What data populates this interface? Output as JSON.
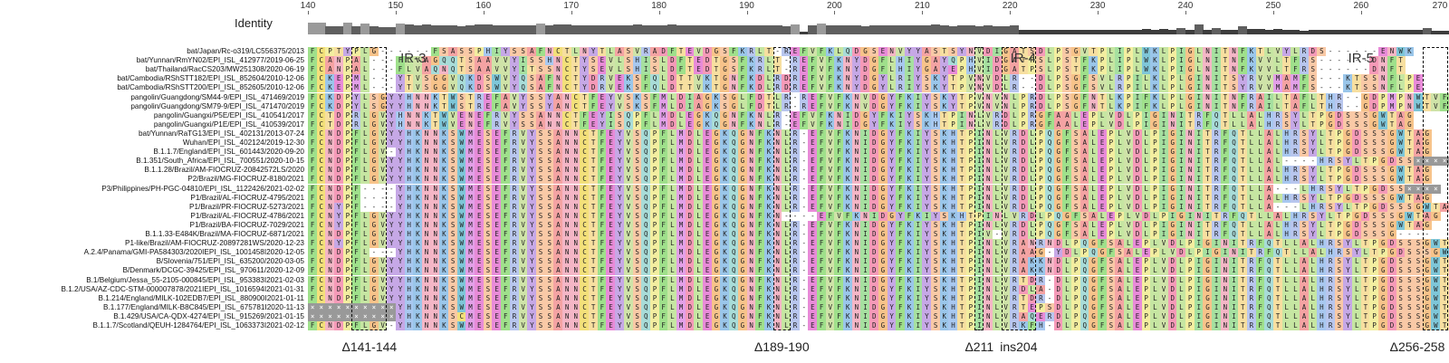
{
  "identity_label": "Identity",
  "ruler_ticks": [
    "140",
    "150",
    "160",
    "170",
    "180",
    "190",
    "200",
    "210",
    "220",
    "230",
    "240",
    "250",
    "260",
    "270"
  ],
  "regions": [
    {
      "label": "IR-3",
      "start": 147,
      "end": 157
    },
    {
      "label": "IR-4",
      "start": 219,
      "end": 224
    },
    {
      "label": "IR-5",
      "start": 256,
      "end": 264
    }
  ],
  "deletions": [
    {
      "label": "Δ141-144",
      "start": 145,
      "end": 149
    },
    {
      "label": "Δ189-190",
      "start": 193,
      "end": 195
    },
    {
      "label": "Δ211",
      "start": 216,
      "end": 217
    },
    {
      "label": "ins204",
      "start": 219,
      "end": 223
    },
    {
      "label": "Δ256-258",
      "start": 267,
      "end": 270
    }
  ],
  "colors": {
    "A": "#f4a3a3",
    "C": "#f3e07a",
    "D": "#f59ab8",
    "E": "#e88bd8",
    "F": "#9fe08b",
    "G": "#f7c38a",
    "H": "#a8c8f0",
    "I": "#a6e0a0",
    "K": "#9ac6ea",
    "L": "#c6e6a2",
    "M": "#e3a0e8",
    "N": "#f4b6c6",
    "P": "#f3eea0",
    "Q": "#a8dcd8",
    "R": "#b8c6ee",
    "S": "#f9c9a6",
    "T": "#f7dfa0",
    "V": "#cfe3a8",
    "W": "#7ec6d8",
    "Y": "#c6a8e6",
    "X": "#999999",
    "-": "#ffffff"
  },
  "sequences": [
    {
      "name": "bat/Japan/Rc-o319/LC556375/2013",
      "seq": "FCPTYPLG------FSASSPHIYSSAFNCTLNYTLASVRADFTEVDGSFKRLT-REFVFKLQDGSENVYYASTSYNVDIGATSDLPSGVTPLIPLWKLPIGLNITNFKTLVYLRDS------ENWK"
    },
    {
      "name": "bat/Yunnan/RmYN02/EPI_ISL_412977/2019-06-25",
      "seq": "FCANPAL---FLVAGQQTSAAVVYISSHNCTYSEVLSHISLDFTEDTGSFKRLT-REFVFKNYDGFLHIYGAYQPHVIDGATPSLPSTFKPLIPLWKLPIGLNITNFKVVLTFRS------DNFT"
    },
    {
      "name": "bat/Thailand/RacCS203/MW251308/2020-06-19",
      "seq": "FCANPAL---FLVAQNQTSAAVVYITSSNCTYSEVLSHISLDFTEDTGSFKRLT-REFVFKNYDGFLHIYGAYEPHVIDGATPSLPSTFKPLIPLWKLPIGLNITNFKVVLTFRS------DNFT"
    },
    {
      "name": "bat/Cambodia/RShSTT182/EPI_ISL_852604/2010-12-06",
      "seq": "FCKEPML---YTVSGGVQKDSWVYQSAFNCTYDRVEKSFQLDTTVKTGNFKDLRDREFVFKNYDGYLRIYSKYTPVNVDLR--DLPSGFSVLRPILKLPLGINITSYRVVMAMFS---KTSSNFLPE"
    },
    {
      "name": "bat/Cambodia/RShSTT200/EPI_ISL_852605/2010-12-06",
      "seq": "FCKEPML---YTVSGGVQKDSWVYQSAFNCTYDRVEKSFQLDTTVKTGNFKDLRDREFVFKNYDGYLRIYSKYTPVNVDLR--DLPSGFSVLRPILKLPLGINITSYRVVMAMFS---KTSSNFLPE"
    },
    {
      "name": "pangolin/Guangdong/SM44-9/EPI_ISL_471469/2019",
      "seq": "FCKDPYLSGYYHNNKTWSTREFAVYSSYANCTFEYVSKSFMLDIAGKSGLFDTLR-REFVFKNVDGYFKIYSKYTPVNVNLPRDLPSGFNTLKPIFKLPLGINITNFRAILTAFLTHR--GDPMPNWTVF"
    },
    {
      "name": "pangolin/Guangdong/SM79-9/EPI_ISL_471470/2019",
      "seq": "FCKDPYLSGYYHNNKTWSTREFAVYSSYANCTFEYVSKSFMLDIAGKSGLFDTLR-REFVFKNVDGYFKIYSKYTPVNVNLPRDLPSGFNTLKPIFKLPLGINITNFRAILTAFLTHR--GDPMPNWTVF"
    },
    {
      "name": "pangolin/Guangxi/P5E/EPI_ISL_410541/2017",
      "seq": "FCTDPRLGVYHNNKTWVENEFRVYSSANNCTFEYISQPFLMDLEGKQGNFKNLR-EFVFKNIDGYFKIYSKHTPINLVRDLPRGFAALEPLVDLPIGINITRFQTLLALHRSYLTPGDSSSGWTAG"
    },
    {
      "name": "pangolin/Guangxi/P1E/EPI_ISL_410539/2017",
      "seq": "FCTDPRLGVYHNNKTWVENEFRVYSSANNCTFEYISQPFLMDLEGKQGNFKNLR-EFVFKNIDGYFKIYSKHTPINLVRDLPRGFAALEPLVDLPIGINITRFQTLLALHRSYLTPGDSSSGWTAG"
    },
    {
      "name": "bat/Yunnan/RaTG13/EPI_ISL_402131/2013-07-24",
      "seq": "FCNDPFLGVYYHKNNKSWMESEFRVYSSANNCTFEYVSQPFLMDLEGKQGNFKNLR-EFVFKNIDGYFKIYSKHTPINLVRDLPQGFSALEPLVDLPIGINITRFQTLLALHRSYLTPGDSSSGWTAG"
    },
    {
      "name": "Wuhan/EPI_ISL_402124/2019-12-30",
      "seq": "FCNDPFLGVYYHKNNKSWMESEFRVYSSANNCTFEYVSQPFLMDLEGKQGNFKNLR-EFVFKNIDGYFKIYSKHTPINLVRDLPQGFSALEPLVDLPIGINITRFQTLLALHRSYLTPGDSSSGWTAG"
    },
    {
      "name": "B.1.1.7/England/EPI_ISL_601443/2020-09-20",
      "seq": "FCNDPFLGV-YHKNNKSWMESEFRVYSSANNCTFEYVSQPFLMDLEGKQGNFKNLR-EFVFKNIDGYFKIYSKHTPINLVRDLPQGFSALEPLVDLPIGINITRFQTLLALHRSYLTPGDSSSGWTAG"
    },
    {
      "name": "B.1.351/South_Africa/EPI_ISL_700551/2020-10-15",
      "seq": "FCNDPFLGVYYHKNNKSWMESEFRVYSSANNCTFEYVSQPFLMDLEGKQGNFKNLR-EFVFKNIDGYFKIYSKHTPINLVRDLPQGFSALEPLVDLPIGINITRFQTLLAL----HRSYLTPGDSSXXXX"
    },
    {
      "name": "B.1.1.28/Brazil/AM-FIOCRUZ-20842572LS/2020",
      "seq": "FCNDPFLGVYYHKNNKSWMESEFRVYSSANNCTFEYVSQPFLMDLEGKQGNFKNLR-EFVFKNIDGYFKIYSKHTPINLVRDLPQGFSALEPLVDLPIGINITRFQTLLALHRSYLTPGDSSSGWTAG"
    },
    {
      "name": "P2/Brazil/MG-FIOCRUZ-8180/2021",
      "seq": "FCNDPFLGVYYHKNNKSWMESEFRVYSSANNCTFEYVSQPFLMDLEGKQGNFKNLR-EFVFKNIDGYFKIYSKHTPINLVRDLPQGFSALEPLVDLPIGINITRFQTLLALHRSYLTPGDSSSGWTAG"
    },
    {
      "name": "P3/Philippines/PH-PGC-04810/EPI_ISL_1122426/2021-02-02",
      "seq": "FCNDPF----YHKNNKSWMESEFRVYSSANNCTFEYVSQPFLMDLEGKQGNFKNLR-EFVFKNIDGYFKIYSKHTPINLVRDLPQGFSALEPLVDLPIGINITRFQTLLA---LHRSYLTPGDSSXXXX"
    },
    {
      "name": "P1/Brazil/AL-FIOCRUZ-4795/2021",
      "seq": "FCNDPF----YHKNNKSWMESEFRVYSSANNCTFEYVSQPFLMDLEGKQGNFKNLR-EFVFKNIDGYFKIYSKHTPINLVRDLPQGFSALEPLVDLPIGINITRFQTLLALHRSYLTPGDSSSGWTAG"
    },
    {
      "name": "P1/Brazil/PR-FIOCRUZ-5273/2021",
      "seq": "FCNYPF----YHKNNKSWMESEFRVYSSANNCTFEYVSQPFLMDLEGKQGNFKNLR-EFVFKNIDGYFKIYSKHTPINLVRDLPQGFSALEPLVDLPIGINITRFQTLLA---LHRSYLTPGDSSSGWTAG"
    },
    {
      "name": "P1/Brazil/AL-FIOCRUZ-4786/2021",
      "seq": "FCNYPFLGVYYHKNNKSWMESEFRVYSSANNCTFEYVSQPFLMDLEGKQGNFKN----EFVFKNIDGYFKIYSKHTPINLVRDLPQGFSALEPLVDLPIGINITRFQTLLALHRSYLTPGDSSSGWTAG"
    },
    {
      "name": "P1/Brazil/BA-FIOCRUZ-7029/2021",
      "seq": "FCNYPFLGVYYHKNNKSWMESEFRVYSSANNCTFEYVSQPFLMDLEGKQGNFKNLR-EFVFKNIDGYFKIYSKHTPINLVRDLPQGFSALEPLVDLPIGINITRFQTLLALHRSYLTPGDSSSGWTAG"
    },
    {
      "name": "B.1.1.33-E484K/Brazil/MA-FIOCRUZ-6871/2021",
      "seq": "FCNDPFLGVYYHKNNKSWMESEFRVYSSANNCTFEYVSQPFLMDLEGKQGNFKNLR-EFVFKNIDGYFKIYSKHTPIV-VRDLPQGFSALEPLVDLPIGINITRFQTLLALHRSYLTPGDSSSG----"
    },
    {
      "name": "P1-like/Brazil/AM-FIOCRUZ-20897281WS/2020-12-23",
      "seq": "FCNYPFLGVYYHKNNKSWMESEFRVYSSANNCTFEYVSQPFLMDLEGKQGNFKNLR-EFVFKNIDGYFKIYSKHTPINLVRANRNDLPQGFSALEPLVDLPIGINITRFQTLLALHRSYLTPGDSSSGWTAG"
    },
    {
      "name": "A.2.4/Panama/GMI-PA584303/2020IEPI_ISL_1001458I2020-12-05",
      "seq": "FCNDPFL---YHKNNKSWMESEFRVYSSANNCTFEYVSQPFLMDLEGKQGNFKNLR-EFVFKNIDGYFKIYSKHTPINLVRAAG-YDLPQGFSALEPLVDLPIGINITRFQTLLALHRSYLTPGDSSSGWTAG"
    },
    {
      "name": "B/Slovenia/751/EPI_ISL_635200/2020-03-05",
      "seq": "FCNDPFLGVYYHKNNKSWMESEFRVYSSANNCTFEYVSQPFLMDLEGKQGNFKNLR-EFVFKNIDGYFKIYSKHTPINLVRAKKNDLPQGFSALEPLVDLPIGINITRFQTLLALHRSYLTPGDSSSGWTAG"
    },
    {
      "name": "B/Denmark/DCGC-39425/EPI_ISL_970611/2020-12-09",
      "seq": "FCNDPFLGVYYHKNNKSWMESEFRVYSSANNCTFEYVSQPFLMDLEGKQGNFKNLR-EFVFKNIDGYFKIYSKHTPINLVRAKKNDLPQGFSALEPLVDLPIGINITRFQTLLALHRSYLTPGDSSSGWTAG"
    },
    {
      "name": "B.1/Belgium/Jessa_55-2105-000845/EPI_ISL_953383I2021-02-03",
      "seq": "FCNDPFLGVYYHKNNKSWMESEFRVYSSANNCTFEYVSQPFLMDLEGKQGNFKNLR-EFVFKNIDGYFKIYSKHTPINLVRTDR-DLPQGFSALEPLVDLPIGINITRFQTLLALHRSYLTPGDSSSGWTAG"
    },
    {
      "name": "B.1.2/USA/AZ-CDC-STM-000007878/2021IEPI_ISL_1016594I2021-01-31",
      "seq": "FCNDPFLGVYYHKNNKSWMESEFRVYSSANNCTFEYVSQPFLMDLEGKQGNFKNLR-EFVFKNIDGYFKIYSKHTPINLVRDLA-DLPQGFSALEPLVDLPIGINITRFQTLLALHRSYLTPGDSSSGWTAG"
    },
    {
      "name": "B.1.214/England/MILK-102EDB7/EPI_ISL_880900I2021-01-11",
      "seq": "FCNDPFLGVYYHKNNKSWMESEFRVYSSANNCTFEYVSQPFLMDLEGKQGNFKNLR-EFVFKNIDGYFKIYSKHTPINLVRTDR-DLPQGFSALEPLVDLPIGINITRFQTLLALHRSYLTPGDSSSGWTAG"
    },
    {
      "name": "B.1.177/England/MILK-B8C845/EPI_ISL_675781I2020-11-13",
      "seq": "XXXXXXXXXXYHKNNKSWMESEFRVYSSANNCTFEYVSQPFLMDLEGKQGNFKNLR-EFVFKNIDGYFKIYSKHTPINLVRTEPSDLPQGFSALEPLVDLPIGINITRFQTLLALHRSYLTPGDSSSGWTAG"
    },
    {
      "name": "B.1.429/USA/CA-QDX-4274/EPI_ISL_915269/2021-01-15",
      "seq": "XXXXXXXXXXYHKNNKSCMESEFRVYSSANNCTFEYVSQPFLMDLEGKQGNFKNLR-EFVFKNIDGYFKIYSKHTPINLVRAQERDLPQGFSALEPLVDLPIGINITRFQTLLALHRSYLTPGDSSSGWTAG"
    },
    {
      "name": "B.1.1.7/Scotland/QEUH-1284764/EPI_ISL_1063373I2021-02-12",
      "seq": "FCNDPFLGV-YHKNNKSWMESEFRVYSSANNCTFEYVSQPFLMDLEGKQGNFKNLR-EFVFKNIDGYFKIYSKHTPINLVRKFH-DLPQGFSALEPLVDLPIGINITRFQTLLALHRSYLTPGDSSSGWTAG"
    }
  ]
}
